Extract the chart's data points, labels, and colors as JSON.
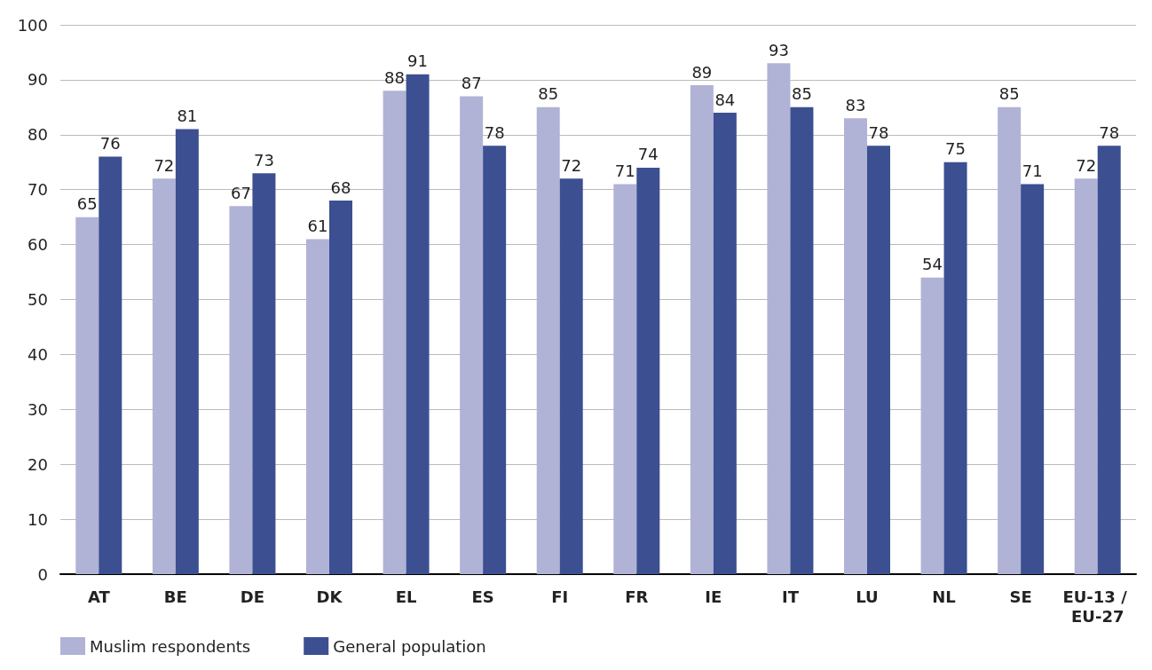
{
  "chart_data": {
    "type": "bar",
    "categories": [
      "AT",
      "BE",
      "DE",
      "DK",
      "EL",
      "ES",
      "FI",
      "FR",
      "IE",
      "IT",
      "LU",
      "NL",
      "SE",
      "EU-13 / EU-27"
    ],
    "series": [
      {
        "name": "Muslim respondents",
        "color": "#b0b3d6",
        "values": [
          65,
          72,
          67,
          61,
          88,
          87,
          85,
          71,
          89,
          93,
          83,
          54,
          85,
          72
        ]
      },
      {
        "name": "General population",
        "color": "#3c4f91",
        "values": [
          76,
          81,
          73,
          68,
          91,
          78,
          72,
          74,
          84,
          85,
          78,
          75,
          71,
          78
        ]
      }
    ],
    "ylim": [
      0,
      100
    ],
    "yticks": [
      0,
      10,
      20,
      30,
      40,
      50,
      60,
      70,
      80,
      90,
      100
    ],
    "grid": "y",
    "legend": "bottom left",
    "data_labels": true
  }
}
